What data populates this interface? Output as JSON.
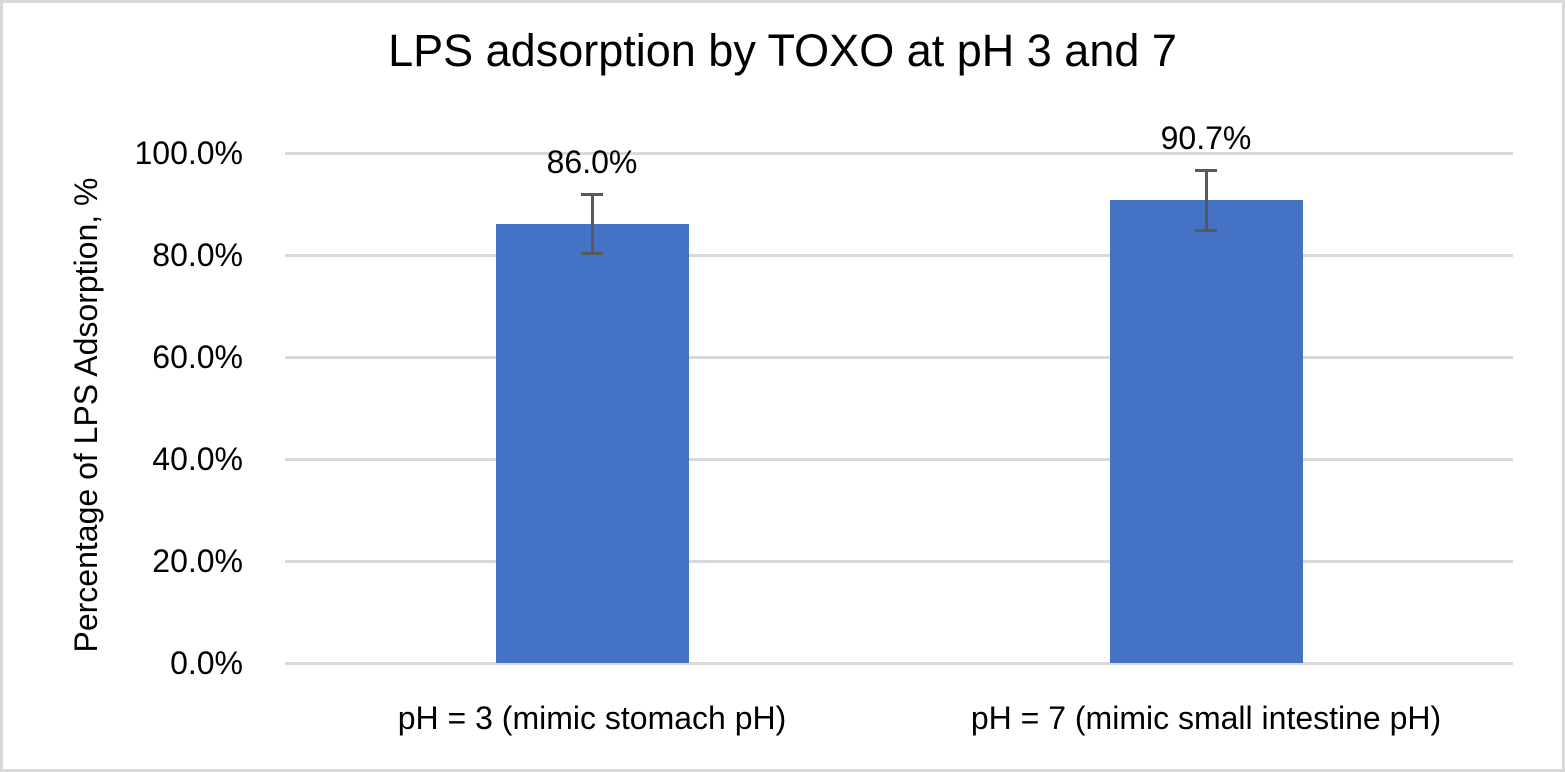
{
  "chart_data": {
    "type": "bar",
    "title": "LPS adsorption by TOXO at pH 3 and 7",
    "ylabel": "Percentage of LPS Adsorption, %",
    "xlabel": "",
    "categories": [
      "pH = 3 (mimic stomach pH)",
      "pH = 7 (mimic small intestine pH)"
    ],
    "values": [
      86.0,
      90.7
    ],
    "value_labels": [
      "86.0%",
      "90.7%"
    ],
    "error_bars_pct": [
      5.8,
      5.8
    ],
    "ylim": [
      0,
      100
    ],
    "yticks": [
      0,
      20,
      40,
      60,
      80,
      100
    ],
    "ytick_labels": [
      "0.0%",
      "20.0%",
      "40.0%",
      "60.0%",
      "80.0%",
      "100.0%"
    ],
    "grid": true,
    "legend": false,
    "colors": {
      "bar": "#4472C4",
      "error_bar": "#595959",
      "gridline": "#D9D9D9",
      "text": "#000000",
      "background": "#FFFFFF",
      "canvas_border": "#D9D9D9"
    }
  }
}
